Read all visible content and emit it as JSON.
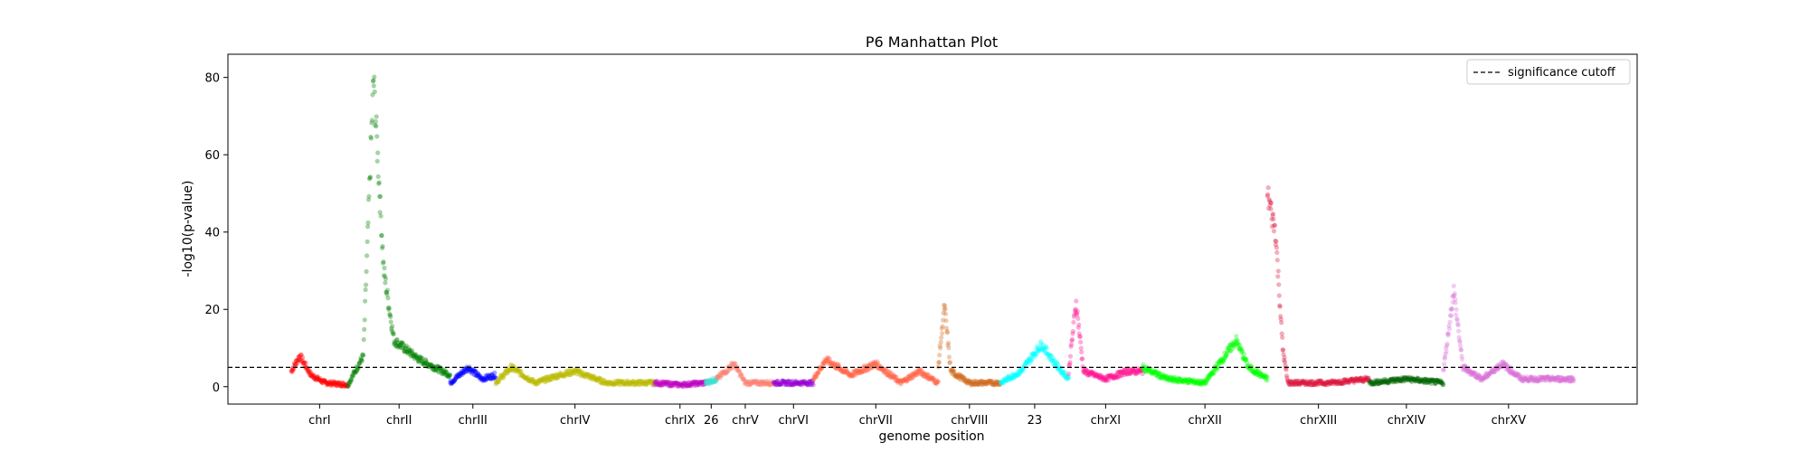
{
  "chart_data": {
    "type": "scatter",
    "title": "P6 Manhattan Plot",
    "xlabel": "genome position",
    "ylabel": "-log10(p-value)",
    "ylim": [
      -4.5,
      86
    ],
    "yticks": [
      0,
      20,
      40,
      60,
      80
    ],
    "grid": false,
    "legend": {
      "position": "top-right",
      "entries": [
        "significance cutoff"
      ]
    },
    "cutoff": 5,
    "chromosomes": [
      {
        "label": "chrI",
        "color": "#ff0000",
        "start": 0,
        "end": 1.0,
        "profile": [
          [
            0,
            4
          ],
          [
            0.15,
            8
          ],
          [
            0.35,
            3
          ],
          [
            0.6,
            1
          ],
          [
            1,
            0.5
          ]
        ]
      },
      {
        "label": "chrII",
        "color": "#008000",
        "start": 1.0,
        "end": 2.8,
        "profile": [
          [
            0,
            0.5
          ],
          [
            0.15,
            8
          ],
          [
            0.25,
            80
          ],
          [
            0.35,
            30
          ],
          [
            0.45,
            12
          ],
          [
            0.7,
            7
          ],
          [
            1,
            3
          ]
        ]
      },
      {
        "label": "chrIII",
        "color": "#0000ff",
        "start": 2.8,
        "end": 3.6,
        "profile": [
          [
            0,
            1
          ],
          [
            0.4,
            5
          ],
          [
            0.7,
            2
          ],
          [
            1,
            3
          ]
        ]
      },
      {
        "label": "chrIV",
        "color": "#bbbb00",
        "start": 3.6,
        "end": 6.4,
        "profile": [
          [
            0,
            1
          ],
          [
            0.1,
            5
          ],
          [
            0.25,
            1
          ],
          [
            0.4,
            3
          ],
          [
            0.5,
            4
          ],
          [
            0.7,
            1
          ],
          [
            1,
            1
          ]
        ]
      },
      {
        "label": "chrIX",
        "color": "#bf00bf",
        "start": 6.4,
        "end": 7.3,
        "profile": [
          [
            0,
            1
          ],
          [
            0.5,
            0.5
          ],
          [
            1,
            1
          ]
        ]
      },
      {
        "label": "26",
        "color": "#40e0d0",
        "start": 7.3,
        "end": 7.5,
        "profile": [
          [
            0,
            1
          ],
          [
            1,
            2
          ]
        ]
      },
      {
        "label": "chrV",
        "color": "#fa8072",
        "start": 7.5,
        "end": 8.5,
        "profile": [
          [
            0,
            2
          ],
          [
            0.3,
            6
          ],
          [
            0.5,
            1
          ],
          [
            1,
            1
          ]
        ]
      },
      {
        "label": "chrVI",
        "color": "#9400d3",
        "start": 8.5,
        "end": 9.2,
        "profile": [
          [
            0,
            1
          ],
          [
            1,
            1
          ]
        ]
      },
      {
        "label": "chrVII",
        "color": "#ff6347",
        "start": 9.2,
        "end": 11.4,
        "profile": [
          [
            0,
            2
          ],
          [
            0.1,
            7
          ],
          [
            0.3,
            3
          ],
          [
            0.5,
            6
          ],
          [
            0.7,
            1
          ],
          [
            0.85,
            4
          ],
          [
            1,
            1
          ]
        ]
      },
      {
        "label": "chrVIII",
        "color": "#d2691e",
        "start": 11.4,
        "end": 12.5,
        "profile": [
          [
            0,
            5
          ],
          [
            0.1,
            21
          ],
          [
            0.2,
            4
          ],
          [
            0.5,
            1
          ],
          [
            1,
            1
          ]
        ]
      },
      {
        "label": "23",
        "color": "#00ffff",
        "start": 12.5,
        "end": 13.7,
        "profile": [
          [
            0,
            1
          ],
          [
            0.3,
            4
          ],
          [
            0.6,
            11
          ],
          [
            0.8,
            6
          ],
          [
            1,
            2
          ]
        ]
      },
      {
        "label": "chrXI",
        "color": "#ff1493",
        "start": 13.7,
        "end": 15.0,
        "profile": [
          [
            0,
            4
          ],
          [
            0.1,
            22
          ],
          [
            0.2,
            4
          ],
          [
            0.5,
            2
          ],
          [
            0.8,
            4
          ],
          [
            1,
            4
          ]
        ]
      },
      {
        "label": "chrXII",
        "color": "#00ff00",
        "start": 15.0,
        "end": 17.2,
        "profile": [
          [
            0,
            5
          ],
          [
            0.2,
            2
          ],
          [
            0.5,
            1
          ],
          [
            0.75,
            12
          ],
          [
            0.85,
            5
          ],
          [
            1,
            2
          ]
        ]
      },
      {
        "label": "chrXIII",
        "color": "#dc143c",
        "start": 17.2,
        "end": 19.0,
        "profile": [
          [
            0,
            50
          ],
          [
            0.08,
            40
          ],
          [
            0.15,
            10
          ],
          [
            0.2,
            1
          ],
          [
            0.6,
            1
          ],
          [
            1,
            2
          ]
        ]
      },
      {
        "label": "chrXIV",
        "color": "#006400",
        "start": 19.0,
        "end": 20.3,
        "profile": [
          [
            0,
            1
          ],
          [
            0.5,
            2
          ],
          [
            1,
            1
          ]
        ]
      },
      {
        "label": "chrXV",
        "color": "#da70d6",
        "start": 20.3,
        "end": 22.6,
        "profile": [
          [
            0,
            4
          ],
          [
            0.08,
            25
          ],
          [
            0.15,
            5
          ],
          [
            0.3,
            2
          ],
          [
            0.45,
            6
          ],
          [
            0.6,
            2
          ],
          [
            1,
            2
          ]
        ]
      }
    ]
  }
}
